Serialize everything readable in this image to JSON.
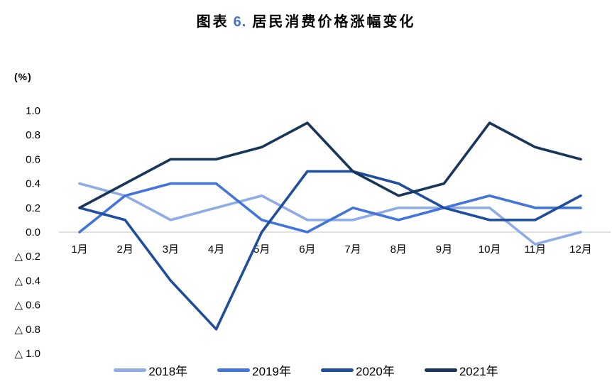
{
  "title": {
    "prefix": "图表",
    "number": "6.",
    "text": "居民消费价格涨幅变化",
    "number_color": "#4472C4"
  },
  "chart_data": {
    "type": "line",
    "title": "图表 6. 居民消费价格涨幅变化",
    "unit_label": "(%)",
    "xlabel": "",
    "ylabel": "(%)",
    "categories": [
      "1月",
      "2月",
      "3月",
      "4月",
      "5月",
      "6月",
      "7月",
      "8月",
      "9月",
      "10月",
      "11月",
      "12月"
    ],
    "series": [
      {
        "name": "2018年",
        "color": "#8FACE6",
        "values": [
          0.4,
          0.3,
          0.1,
          0.2,
          0.3,
          0.1,
          0.1,
          0.2,
          0.2,
          0.2,
          -0.1,
          0.0
        ]
      },
      {
        "name": "2019年",
        "color": "#4274DB",
        "values": [
          0.0,
          0.3,
          0.4,
          0.4,
          0.1,
          0.0,
          0.2,
          0.1,
          0.2,
          0.3,
          0.2,
          0.2
        ]
      },
      {
        "name": "2020年",
        "color": "#1F4E9F",
        "values": [
          0.2,
          0.1,
          -0.4,
          -0.8,
          0.0,
          0.5,
          0.5,
          0.4,
          0.2,
          0.1,
          0.1,
          0.3
        ]
      },
      {
        "name": "2021年",
        "color": "#18355C",
        "values": [
          0.2,
          0.4,
          0.6,
          0.6,
          0.7,
          0.9,
          0.5,
          0.3,
          0.4,
          0.9,
          0.7,
          0.6
        ]
      }
    ],
    "ylim": [
      -1.0,
      1.0
    ],
    "ytick_step": 0.2,
    "yticks": [
      "1.0",
      "0.8",
      "0.6",
      "0.4",
      "0.2",
      "0.0",
      "△ 0.2",
      "△ 0.4",
      "△ 0.6",
      "△ 0.8",
      "△ 1.0"
    ],
    "negative_prefix": "△",
    "grid": "zero-line-only",
    "zero_line_color": "#D8D8D8",
    "legend_position": "bottom"
  }
}
